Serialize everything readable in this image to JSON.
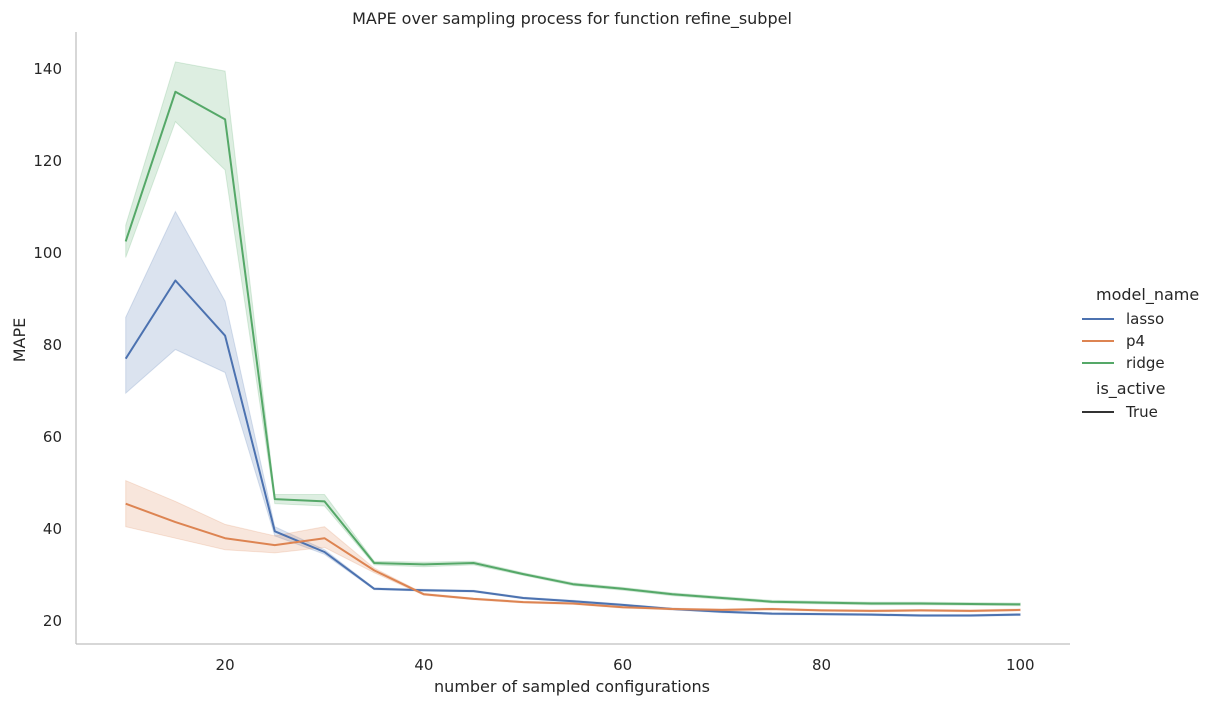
{
  "chart_data": {
    "type": "line",
    "title": "MAPE over sampling process for function refine_subpel",
    "xlabel": "number of sampled configurations",
    "ylabel": "MAPE",
    "xlim": [
      5,
      105
    ],
    "ylim": [
      15,
      148
    ],
    "xticks": [
      20,
      40,
      60,
      80,
      100
    ],
    "yticks": [
      20,
      40,
      60,
      80,
      100,
      120,
      140
    ],
    "grid": false,
    "legend_placement": "right",
    "legend": {
      "hue_title": "model_name",
      "style_title": "is_active",
      "style_entries": [
        "True"
      ]
    },
    "x": [
      10,
      15,
      20,
      25,
      30,
      35,
      40,
      45,
      50,
      55,
      60,
      65,
      70,
      75,
      80,
      85,
      90,
      95,
      100
    ],
    "series": [
      {
        "name": "lasso",
        "color": "#4c72b0",
        "values": [
          77,
          94,
          82,
          39.5,
          35,
          27,
          26.7,
          26.5,
          25,
          24.3,
          23.5,
          22.6,
          22,
          21.6,
          21.5,
          21.4,
          21.2,
          21.2,
          21.4
        ],
        "lower": [
          69.5,
          79,
          74,
          38.5,
          34.5,
          26.8,
          26.5,
          26.3,
          24.8,
          24.1,
          23.3,
          22.4,
          21.8,
          21.4,
          21.3,
          21.2,
          21.0,
          21.0,
          21.2
        ],
        "upper": [
          86,
          109,
          89.5,
          40.5,
          35.5,
          27.2,
          26.9,
          26.7,
          25.2,
          24.5,
          23.7,
          22.8,
          22.2,
          21.8,
          21.7,
          21.6,
          21.4,
          21.4,
          21.6
        ]
      },
      {
        "name": "p4",
        "color": "#dd8452",
        "values": [
          45.5,
          41.5,
          38,
          36.5,
          38,
          31,
          25.8,
          24.8,
          24.1,
          23.8,
          23,
          22.6,
          22.4,
          22.6,
          22.3,
          22.2,
          22.3,
          22.2,
          22.4
        ],
        "lower": [
          40.5,
          38,
          35.5,
          34.8,
          36,
          30.5,
          25.6,
          24.6,
          23.9,
          23.6,
          22.8,
          22.4,
          22.2,
          22.4,
          22.1,
          22.0,
          22.1,
          22.0,
          22.2
        ],
        "upper": [
          50.5,
          46,
          41,
          38.5,
          40.5,
          31.5,
          26,
          25,
          24.3,
          24,
          23.2,
          22.8,
          22.6,
          22.8,
          22.5,
          22.4,
          22.5,
          22.4,
          22.6
        ]
      },
      {
        "name": "ridge",
        "color": "#55a868",
        "values": [
          102.5,
          135,
          129,
          46.5,
          46,
          32.6,
          32.3,
          32.6,
          30.2,
          28,
          27,
          25.8,
          25,
          24.2,
          24,
          23.8,
          23.8,
          23.7,
          23.6
        ],
        "lower": [
          99,
          128.5,
          118,
          45.5,
          45,
          32.2,
          31.8,
          32.2,
          29.9,
          27.7,
          26.7,
          25.5,
          24.7,
          23.9,
          23.7,
          23.5,
          23.5,
          23.4,
          23.3
        ],
        "upper": [
          106,
          141.5,
          139.5,
          47.5,
          47.5,
          33,
          32.8,
          33,
          30.5,
          28.3,
          27.3,
          26.1,
          25.3,
          24.5,
          24.3,
          24.1,
          24.1,
          24.0,
          23.9
        ]
      }
    ]
  }
}
